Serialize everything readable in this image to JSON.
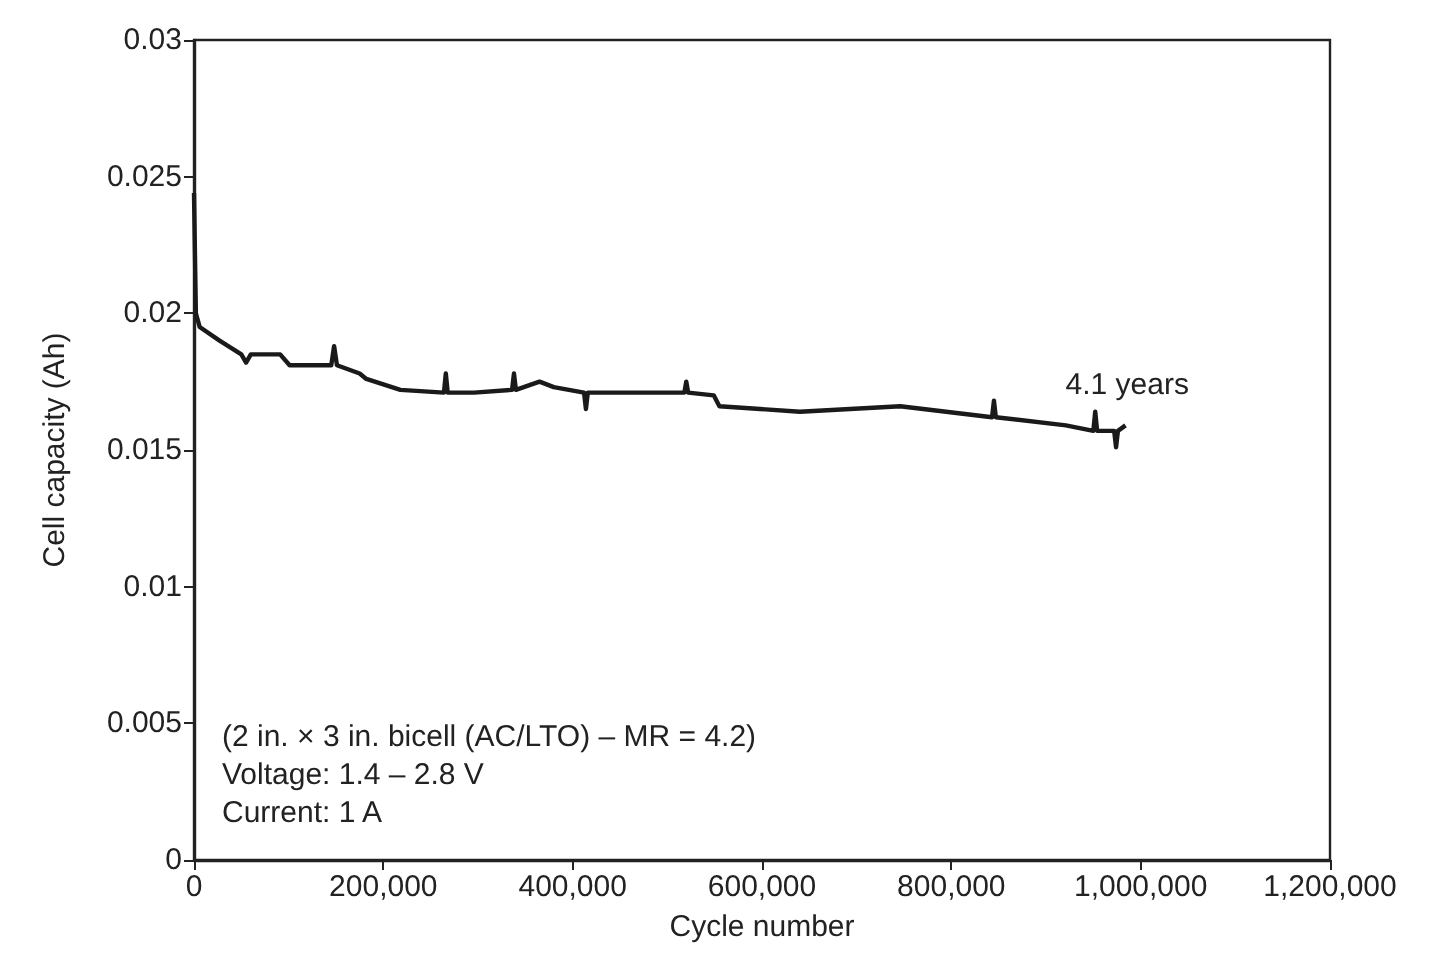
{
  "chart_data": {
    "type": "line",
    "xlabel": "Cycle number",
    "ylabel": "Cell capacity (Ah)",
    "x": [
      0,
      2000,
      6000,
      27000,
      50000,
      55000,
      60000,
      91000,
      101000,
      145000,
      148000,
      151000,
      175000,
      182000,
      218000,
      264000,
      266000,
      268000,
      296000,
      336000,
      338000,
      340000,
      365000,
      380000,
      412000,
      414000,
      416000,
      477000,
      518000,
      520000,
      522000,
      549000,
      555000,
      598000,
      640000,
      746000,
      843000,
      845000,
      847000,
      921000,
      950000,
      952000,
      954000,
      972000,
      974000,
      976000,
      984000
    ],
    "values": [
      0.0244,
      0.02,
      0.0195,
      0.019,
      0.0185,
      0.0182,
      0.0185,
      0.0185,
      0.0181,
      0.0181,
      0.0188,
      0.0181,
      0.0178,
      0.0176,
      0.0172,
      0.0171,
      0.0178,
      0.0171,
      0.0171,
      0.0172,
      0.0178,
      0.0172,
      0.0175,
      0.0173,
      0.0171,
      0.0165,
      0.0171,
      0.0171,
      0.0171,
      0.0175,
      0.0171,
      0.017,
      0.0166,
      0.0165,
      0.0164,
      0.0166,
      0.0162,
      0.0168,
      0.0162,
      0.0159,
      0.0157,
      0.0164,
      0.0157,
      0.0157,
      0.0151,
      0.0157,
      0.0159
    ],
    "color": "#1a1a1a",
    "marker": "none",
    "line_style": "solid",
    "grid": false,
    "xlim": [
      0,
      1200000
    ],
    "xticks": [
      {
        "value": 0,
        "label": "0"
      },
      {
        "value": 200000,
        "label": "200,000"
      },
      {
        "value": 400000,
        "label": "400,000"
      },
      {
        "value": 600000,
        "label": "600,000"
      },
      {
        "value": 800000,
        "label": "800,000"
      },
      {
        "value": 1000000,
        "label": "1,000,000"
      },
      {
        "value": 1200000,
        "label": "1,200,000"
      }
    ],
    "ylim": [
      0,
      0.03
    ],
    "yticks": [
      0,
      0.005,
      0.01,
      0.015,
      0.02,
      0.025,
      0.03
    ],
    "annotations": [
      "4.1 years",
      "(2 in. × 3 in. bicell (AC/LTO) – MR = 4.2)",
      "Voltage: 1.4 – 2.8 V",
      "Current: 1 A"
    ]
  }
}
